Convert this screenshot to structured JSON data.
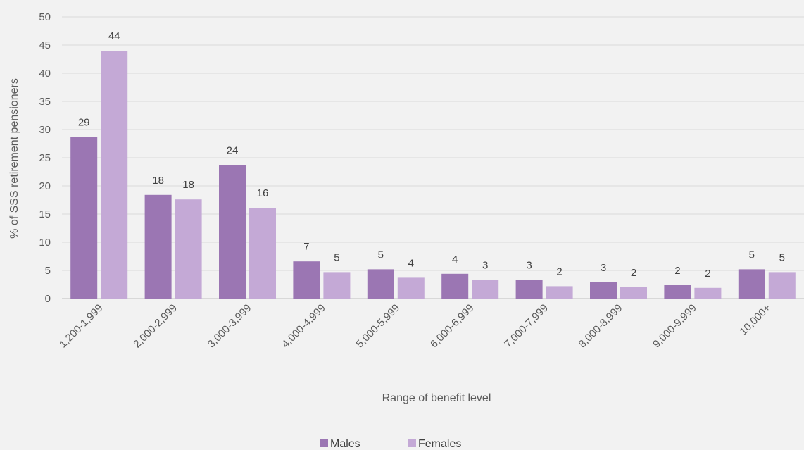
{
  "chart_data": {
    "type": "bar",
    "xlabel": "Range of benefit level",
    "ylabel": "% of SSS retirement pensioners",
    "ylim": [
      0,
      50
    ],
    "yticks": [
      0,
      5,
      10,
      15,
      20,
      25,
      30,
      35,
      40,
      45,
      50
    ],
    "grid": true,
    "legend_position": "bottom",
    "categories": [
      "1,200-1,999",
      "2,000-2,999",
      "3,000-3,999",
      "4,000-4,999",
      "5,000-5,999",
      "6,000-6,999",
      "7,000-7,999",
      "8,000-8,999",
      "9,000-9,999",
      "10,000+"
    ],
    "series": [
      {
        "name": "Males",
        "color": "#9b76b3",
        "values": [
          28.7,
          18.4,
          23.7,
          6.6,
          5.2,
          4.4,
          3.3,
          2.9,
          2.4,
          5.2
        ],
        "labels": [
          "29",
          "18",
          "24",
          "7",
          "5",
          "4",
          "3",
          "3",
          "2",
          "5"
        ]
      },
      {
        "name": "Females",
        "color": "#c4a9d6",
        "values": [
          44.0,
          17.6,
          16.1,
          4.7,
          3.7,
          3.3,
          2.2,
          2.0,
          1.9,
          4.7
        ],
        "labels": [
          "44",
          "18",
          "16",
          "5",
          "4",
          "3",
          "2",
          "2",
          "2",
          "5"
        ]
      }
    ]
  }
}
